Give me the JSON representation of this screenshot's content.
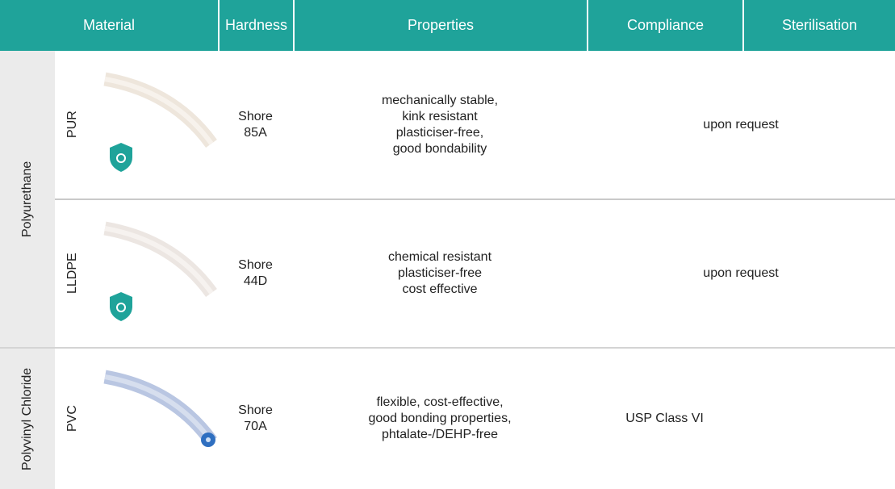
{
  "table": {
    "columns": [
      "Material",
      "Hardness",
      "Properties",
      "Compliance",
      "Sterilisation"
    ],
    "groups": [
      {
        "name": "Polyurethane",
        "rows": [
          {
            "material": "PUR",
            "hardness": [
              "Shore",
              "85A"
            ],
            "properties": [
              "mechanically stable,",
              "kink resistant",
              "plasticiser-free,",
              "good bondability"
            ],
            "compliance_sterilisation": "upon request"
          },
          {
            "material": "LLDPE",
            "hardness": [
              "Shore",
              "44D"
            ],
            "properties": [
              "chemical resistant",
              "plasticiser-free",
              "cost effective"
            ],
            "compliance_sterilisation": "upon request"
          }
        ]
      },
      {
        "name": "Polyvinyl Chloride",
        "rows": [
          {
            "material": "PVC",
            "hardness": [
              "Shore",
              "70A"
            ],
            "properties": [
              "flexible, cost-effective,",
              "good bonding properties,",
              "phtalate-/DEHP-free"
            ],
            "compliance": "USP Class VI"
          }
        ]
      }
    ]
  }
}
